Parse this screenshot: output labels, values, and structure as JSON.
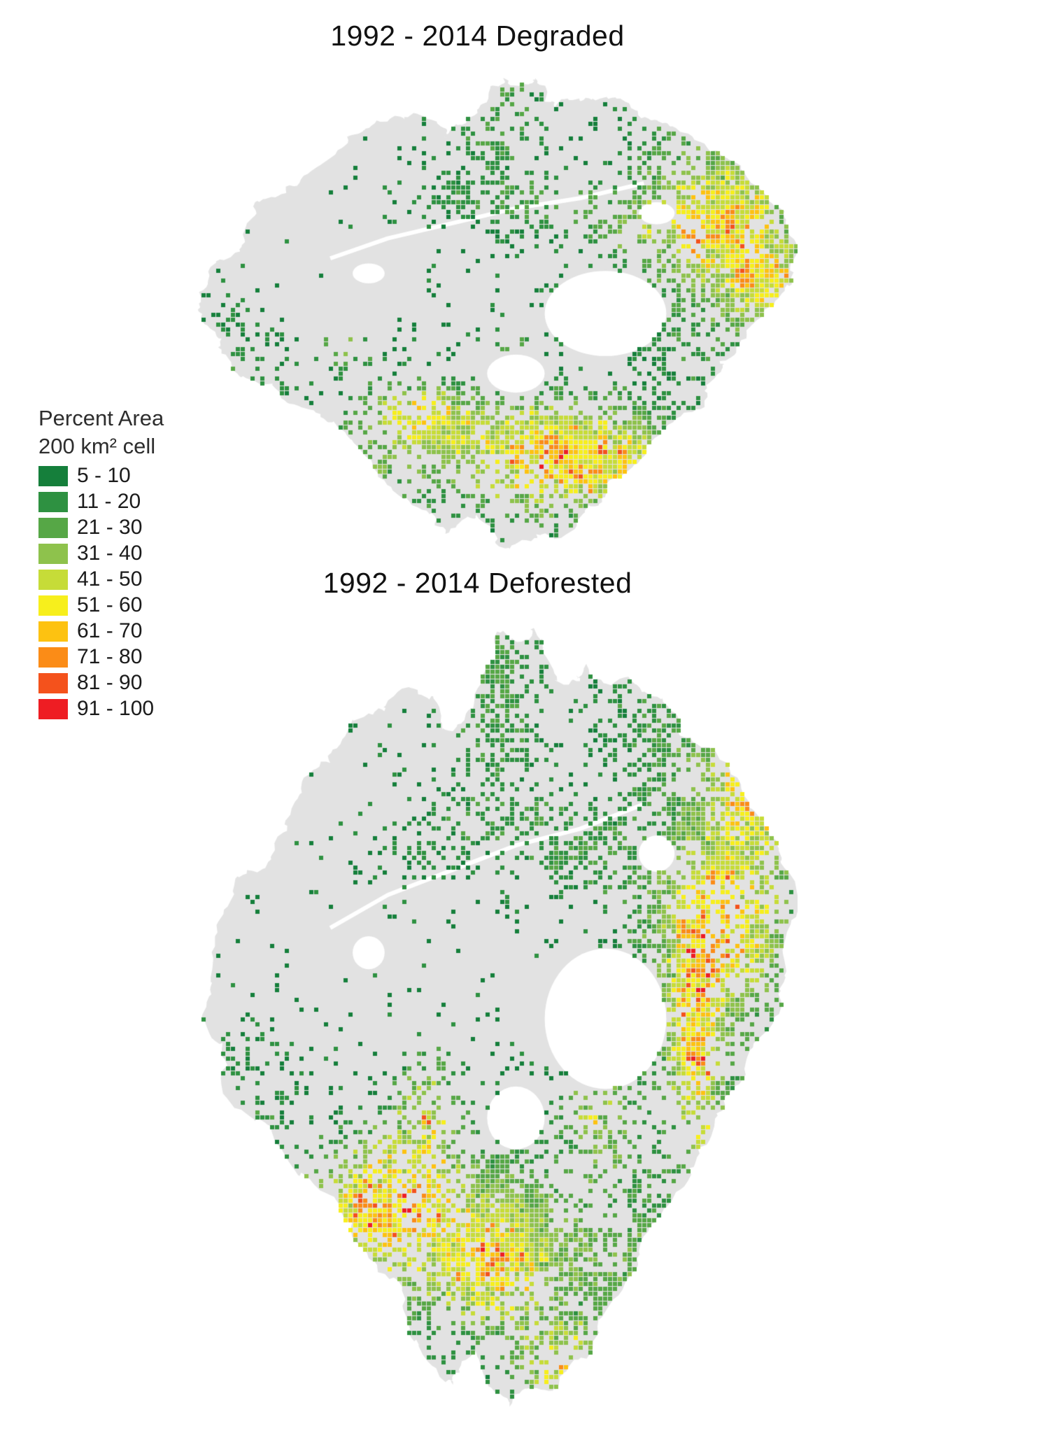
{
  "figure": {
    "maps": [
      {
        "title": "1992 - 2014 Degraded"
      },
      {
        "title": "1992 - 2014 Deforested"
      }
    ],
    "legend": {
      "title_line1": "Percent Area",
      "title_line2": "200 km² cell",
      "classes": [
        {
          "label": "5 - 10",
          "color": "#157f3b"
        },
        {
          "label": "11 - 20",
          "color": "#2e9141"
        },
        {
          "label": "21 - 30",
          "color": "#56a746"
        },
        {
          "label": "31 - 40",
          "color": "#8ec24c"
        },
        {
          "label": "41 - 50",
          "color": "#c6dc38"
        },
        {
          "label": "51 - 60",
          "color": "#f7ef1c"
        },
        {
          "label": "61 - 70",
          "color": "#fdc211"
        },
        {
          "label": "71 - 80",
          "color": "#fb8c17"
        },
        {
          "label": "81 - 90",
          "color": "#f4521c"
        },
        {
          "label": "91 - 100",
          "color": "#ee1d23"
        }
      ]
    },
    "map_colors": {
      "background": "#ffffff",
      "landmass": "#e2e2e2"
    }
  }
}
